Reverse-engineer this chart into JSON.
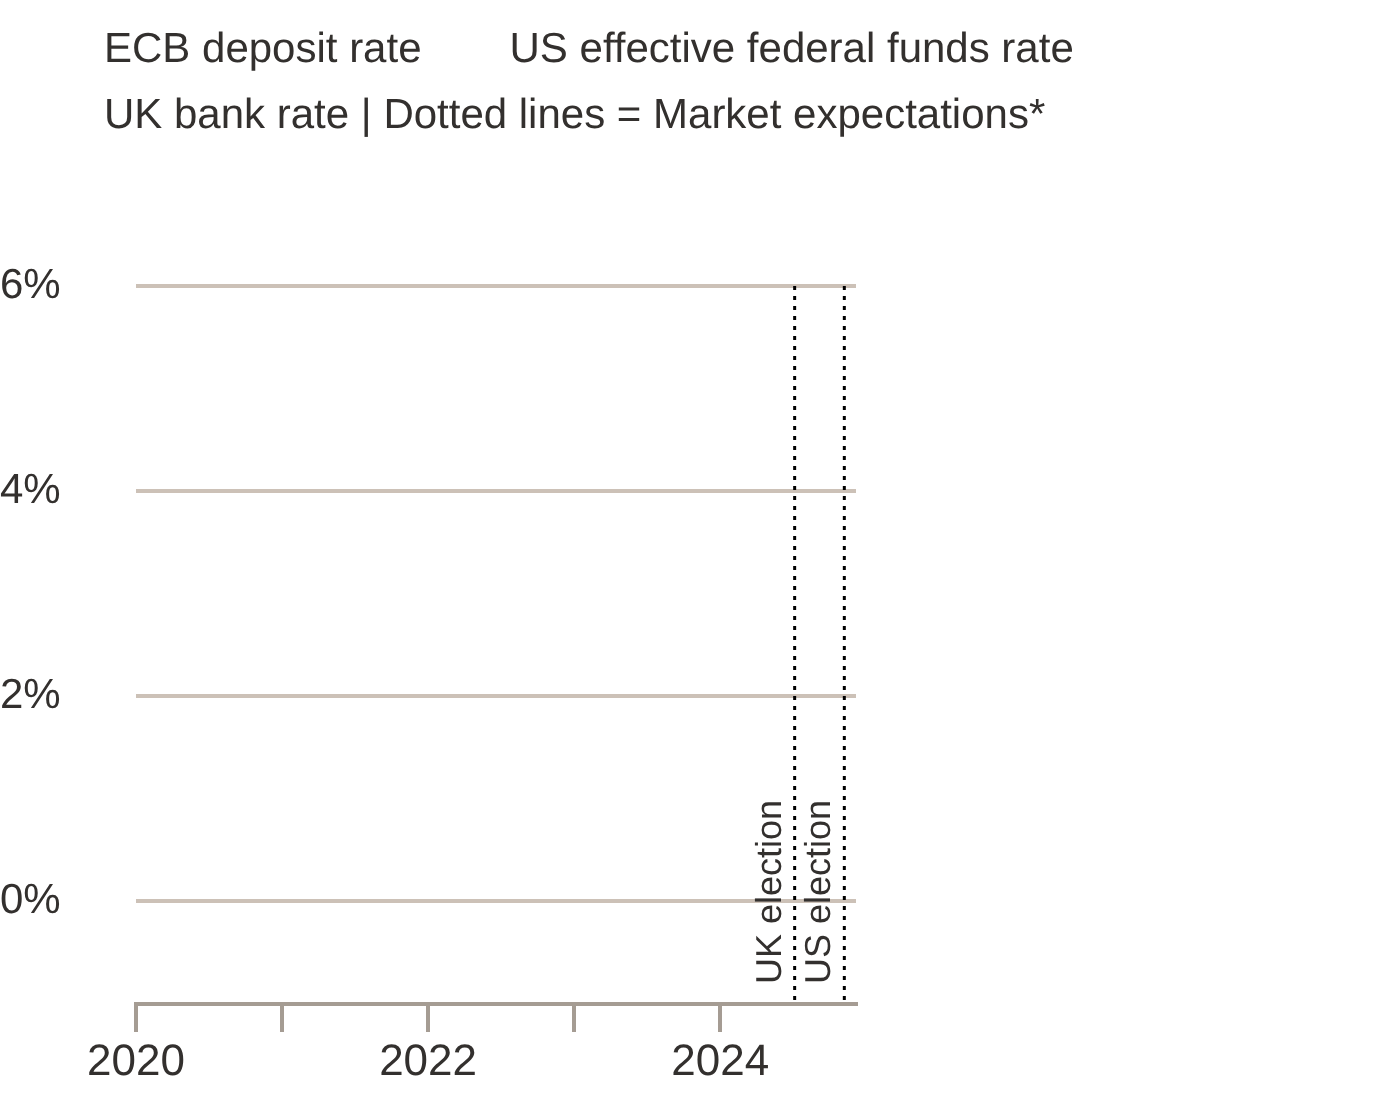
{
  "chart_data": {
    "type": "line",
    "annotations": [
      "ECB deposit rate",
      "US effective federal funds rate",
      "UK bank rate | Dotted lines = Market expectations*"
    ],
    "xlim": [
      2020,
      2024.93
    ],
    "xticks": [
      2020,
      {
        "value": 2021,
        "label": null
      },
      2022,
      {
        "value": 2023,
        "label": null
      },
      2024
    ],
    "ylim": [
      -1,
      6
    ],
    "yticks": [
      {
        "value": 0,
        "label": "0%"
      },
      {
        "value": 2,
        "label": "2%"
      },
      {
        "value": 4,
        "label": "4%"
      },
      {
        "value": 6,
        "label": "6%"
      }
    ],
    "grid": "y",
    "ref_lines": [
      {
        "axis": "x",
        "value": 2024.51,
        "label": "UK election",
        "color": "#000000",
        "line_style": "dotted"
      },
      {
        "axis": "x",
        "value": 2024.85,
        "label": "US election",
        "color": "#000000",
        "line_style": "dotted"
      }
    ]
  }
}
